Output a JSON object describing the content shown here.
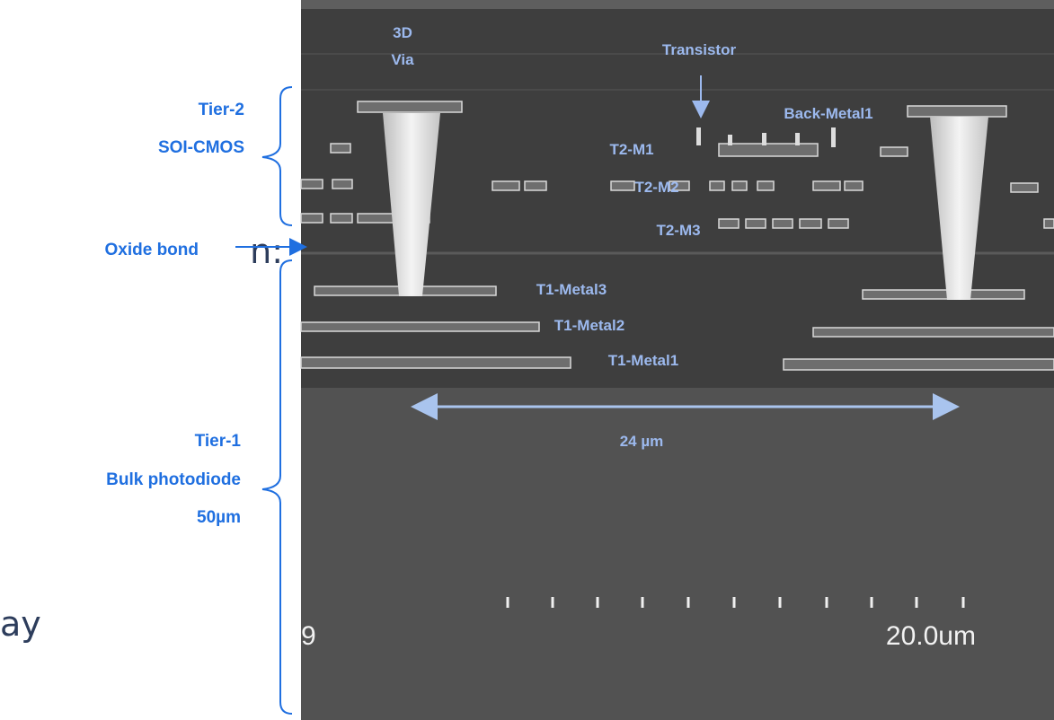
{
  "slide_fragments": {
    "upper": "n:",
    "lower": "ay"
  },
  "left_labels": {
    "tier2": [
      "Tier-2",
      "SOI-CMOS"
    ],
    "oxide_bond": "Oxide bond",
    "tier1": [
      "Tier-1",
      "Bulk photodiode",
      "50µm"
    ]
  },
  "image_labels": {
    "via": [
      "3D",
      "Via"
    ],
    "transistor": "Transistor",
    "back_metal": "Back-Metal1",
    "t2": [
      "T2-M1",
      "T2-M2",
      "T2-M3"
    ],
    "t1": [
      "T1-Metal3",
      "T1-Metal2",
      "T1-Metal1"
    ],
    "pitch": "24 µm"
  },
  "sem_overlay": {
    "left_text": "9",
    "scale": "20.0um"
  }
}
